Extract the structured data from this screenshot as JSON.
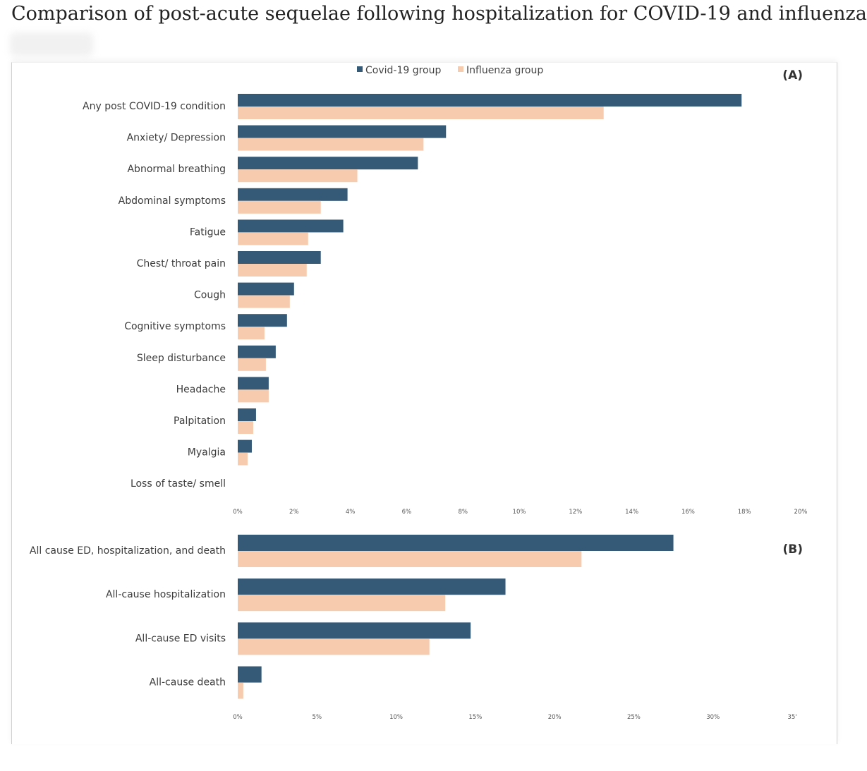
{
  "page_title": "Comparison of post-acute sequelae following hospitalization for COVID-19 and influenza",
  "colors": {
    "covid": "#355a78",
    "influenza": "#f7cbad"
  },
  "legend": {
    "covid": "Covid-19 group",
    "influenza": "Influenza group"
  },
  "chart_data": [
    {
      "panel": "(A)",
      "type": "bar",
      "orientation": "horizontal",
      "categories": [
        "Any post COVID-19 condition",
        "Anxiety/ Depression",
        "Abnormal breathing",
        "Abdominal symptoms",
        "Fatigue",
        "Chest/ throat pain",
        "Cough",
        "Cognitive symptoms",
        "Sleep disturbance",
        "Headache",
        "Palpitation",
        "Myalgia",
        "Loss of taste/ smell"
      ],
      "series": [
        {
          "name": "Covid-19 group",
          "values": [
            17.9,
            7.4,
            6.4,
            3.9,
            3.75,
            2.95,
            2.0,
            1.75,
            1.35,
            1.1,
            0.65,
            0.5,
            0.0
          ]
        },
        {
          "name": "Influenza group",
          "values": [
            13.0,
            6.6,
            4.25,
            2.95,
            2.5,
            2.45,
            1.85,
            0.95,
            1.0,
            1.1,
            0.55,
            0.35,
            0.0
          ]
        }
      ],
      "xlim": [
        0,
        20
      ],
      "ticks": [
        "0%",
        "2%",
        "4%",
        "6%",
        "8%",
        "10%",
        "12%",
        "14%",
        "16%",
        "18%",
        "20%"
      ],
      "legend_position": "top-center"
    },
    {
      "panel": "(B)",
      "type": "bar",
      "orientation": "horizontal",
      "categories": [
        "All cause ED, hospitalization, and death",
        "All-cause hospitalization",
        "All-cause ED visits",
        "All-cause death"
      ],
      "series": [
        {
          "name": "Covid-19 group",
          "values": [
            27.5,
            16.9,
            14.7,
            1.5
          ]
        },
        {
          "name": "Influenza group",
          "values": [
            21.7,
            13.1,
            12.1,
            0.35
          ]
        }
      ],
      "xlim": [
        0,
        35
      ],
      "ticks": [
        "0%",
        "5%",
        "10%",
        "15%",
        "20%",
        "25%",
        "30%",
        "35'"
      ]
    }
  ]
}
